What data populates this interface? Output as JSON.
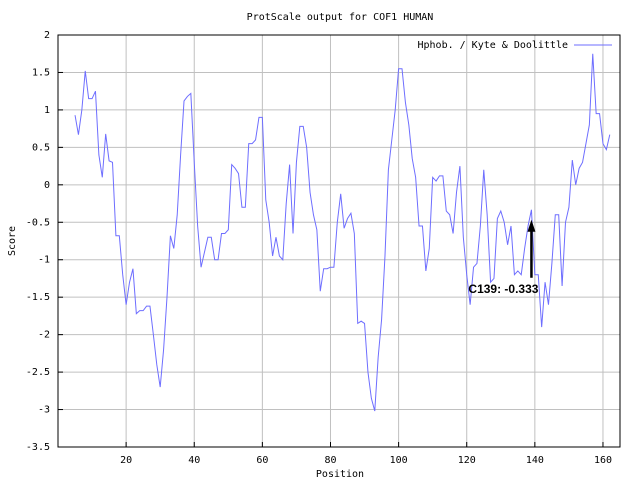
{
  "chart_data": {
    "type": "line",
    "title": "ProtScale output for COF1 HUMAN",
    "xlabel": "Position",
    "ylabel": "Score",
    "xlim": [
      0,
      165
    ],
    "ylim": [
      -3.5,
      2
    ],
    "xticks": [
      20,
      40,
      60,
      80,
      100,
      120,
      140,
      160
    ],
    "yticks": [
      2,
      1.5,
      1,
      0.5,
      0,
      -0.5,
      -1,
      -1.5,
      -2,
      -2.5,
      -3,
      -3.5
    ],
    "grid": true,
    "legend": "upper right",
    "annotation": {
      "text": "C139: -0.333",
      "x": 139,
      "y": -0.333
    },
    "x": [
      5,
      6,
      7,
      8,
      9,
      10,
      11,
      12,
      13,
      14,
      15,
      16,
      17,
      18,
      19,
      20,
      21,
      22,
      23,
      24,
      25,
      26,
      27,
      28,
      29,
      30,
      31,
      32,
      33,
      34,
      35,
      36,
      37,
      38,
      39,
      40,
      41,
      42,
      43,
      44,
      45,
      46,
      47,
      48,
      49,
      50,
      51,
      52,
      53,
      54,
      55,
      56,
      57,
      58,
      59,
      60,
      61,
      62,
      63,
      64,
      65,
      66,
      67,
      68,
      69,
      70,
      71,
      72,
      73,
      74,
      75,
      76,
      77,
      78,
      79,
      80,
      81,
      82,
      83,
      84,
      85,
      86,
      87,
      88,
      89,
      90,
      91,
      92,
      93,
      94,
      95,
      96,
      97,
      98,
      99,
      100,
      101,
      102,
      103,
      104,
      105,
      106,
      107,
      108,
      109,
      110,
      111,
      112,
      113,
      114,
      115,
      116,
      117,
      118,
      119,
      120,
      121,
      122,
      123,
      124,
      125,
      126,
      127,
      128,
      129,
      130,
      131,
      132,
      133,
      134,
      135,
      136,
      137,
      138,
      139,
      140,
      141,
      142,
      143,
      144,
      145,
      146,
      147,
      148,
      149,
      150,
      151,
      152,
      153,
      154,
      155,
      156,
      157,
      158,
      159,
      160,
      161,
      162
    ],
    "series": [
      {
        "name": "Hphob. / Kyte & Doolittle",
        "color": "#6e6eff",
        "values": [
          0.93,
          0.67,
          1.0,
          1.52,
          1.15,
          1.15,
          1.25,
          0.4,
          0.1,
          0.68,
          0.32,
          0.3,
          -0.68,
          -0.68,
          -1.2,
          -1.6,
          -1.3,
          -1.12,
          -1.72,
          -1.68,
          -1.68,
          -1.62,
          -1.62,
          -2.0,
          -2.4,
          -2.7,
          -2.2,
          -1.5,
          -0.68,
          -0.85,
          -0.4,
          0.4,
          1.12,
          1.18,
          1.22,
          0.3,
          -0.55,
          -1.1,
          -0.9,
          -0.7,
          -0.7,
          -1.0,
          -1.0,
          -0.65,
          -0.65,
          -0.6,
          0.27,
          0.22,
          0.15,
          -0.3,
          -0.3,
          0.55,
          0.55,
          0.6,
          0.9,
          0.9,
          -0.2,
          -0.5,
          -0.95,
          -0.7,
          -0.95,
          -1.0,
          -0.25,
          0.27,
          -0.65,
          0.3,
          0.78,
          0.78,
          0.5,
          -0.1,
          -0.4,
          -0.6,
          -1.42,
          -1.12,
          -1.12,
          -1.1,
          -1.1,
          -0.5,
          -0.12,
          -0.58,
          -0.45,
          -0.38,
          -0.65,
          -1.85,
          -1.82,
          -1.85,
          -2.5,
          -2.85,
          -3.02,
          -2.3,
          -1.8,
          -0.95,
          0.2,
          0.6,
          1.0,
          1.55,
          1.55,
          1.1,
          0.8,
          0.35,
          0.1,
          -0.55,
          -0.55,
          -1.15,
          -0.85,
          0.1,
          0.05,
          0.12,
          0.12,
          -0.35,
          -0.4,
          -0.65,
          -0.1,
          0.25,
          -0.7,
          -1.2,
          -1.6,
          -1.1,
          -1.05,
          -0.55,
          0.2,
          -0.4,
          -1.3,
          -1.25,
          -0.45,
          -0.35,
          -0.5,
          -0.8,
          -0.55,
          -1.2,
          -1.15,
          -1.2,
          -0.85,
          -0.55,
          -0.333,
          -1.2,
          -1.2,
          -1.9,
          -1.3,
          -1.6,
          -1.05,
          -0.4,
          -0.4,
          -1.35,
          -0.5,
          -0.3,
          0.33,
          0.0,
          0.22,
          0.3,
          0.55,
          0.8,
          1.75,
          0.95,
          0.95,
          0.55,
          0.47,
          0.67
        ]
      }
    ]
  }
}
